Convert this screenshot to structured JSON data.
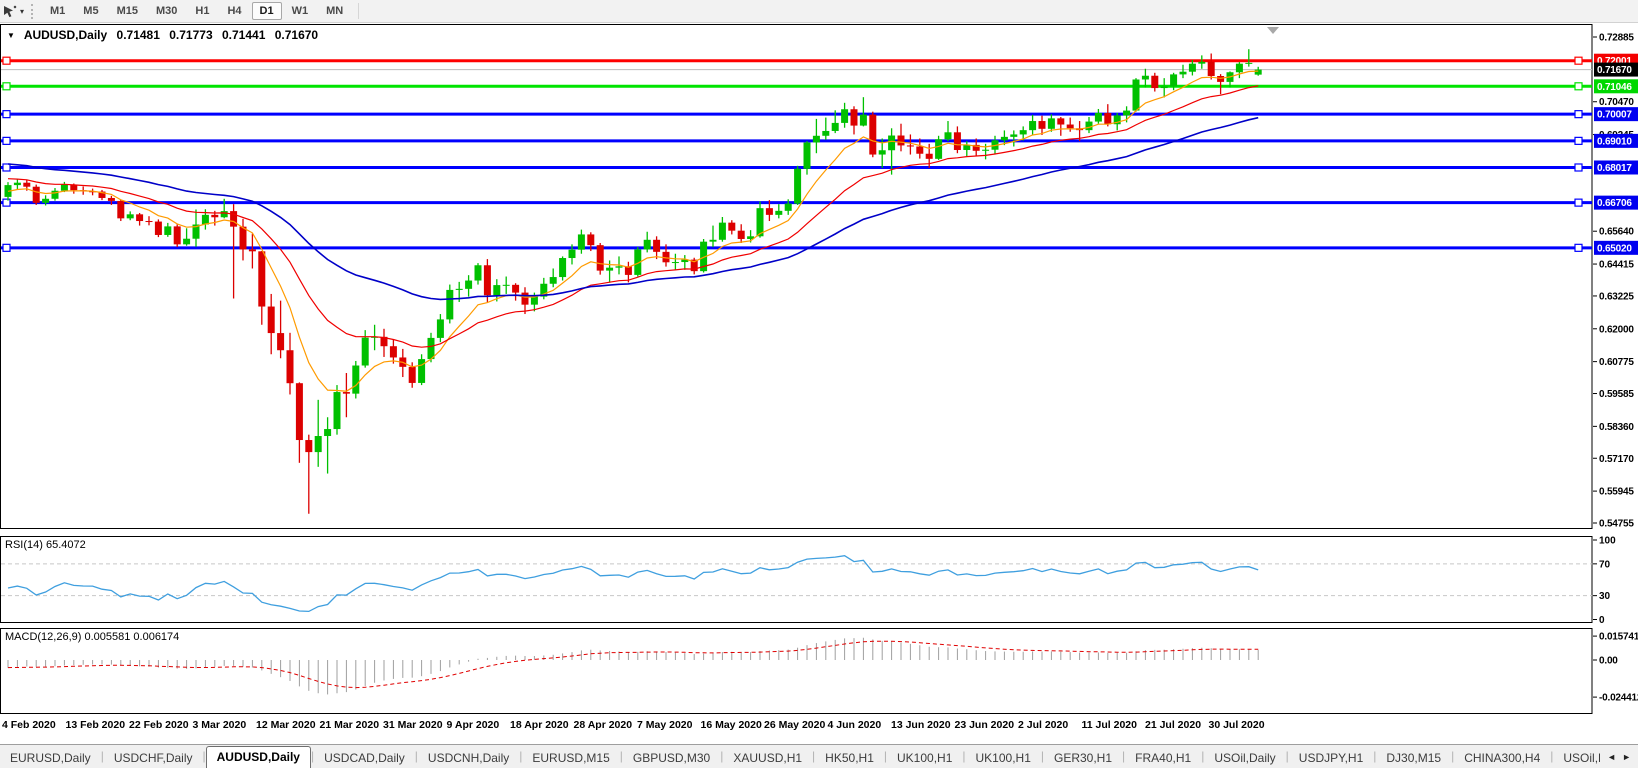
{
  "toolbar": {
    "timeframes": [
      "M1",
      "M5",
      "M15",
      "M30",
      "H1",
      "H4",
      "D1",
      "W1",
      "MN"
    ],
    "active": "D1"
  },
  "chart": {
    "title": {
      "symbol": "AUDUSD,Daily",
      "open": "0.71481",
      "high": "0.71773",
      "low": "0.71441",
      "close": "0.71670"
    }
  },
  "panels": {
    "rsi_label": "RSI(14) 65.4072",
    "macd_label": "MACD(12,26,9) 0.005581 0.006174"
  },
  "tabs": {
    "active_index": 2,
    "items": [
      "EURUSD,Daily",
      "USDCHF,Daily",
      "AUDUSD,Daily",
      "USDCAD,Daily",
      "USDCNH,Daily",
      "EURUSD,M15",
      "GBPUSD,M30",
      "XAUUSD,H1",
      "HK50,H1",
      "UK100,H1",
      "UK100,H1",
      "GER30,H1",
      "FRA40,H1",
      "USOil,Daily",
      "USDJPY,H1",
      "DJ30,M15",
      "CHINA300,H4",
      "USOil,H4"
    ],
    "left_arrow": "◄",
    "right_arrow": "►"
  },
  "chart_data": {
    "type": "candlestick",
    "symbol": "AUDUSD",
    "timeframe": "Daily",
    "current_bar": {
      "open": 0.71481,
      "high": 0.71773,
      "low": 0.71441,
      "close": 0.7167
    },
    "x_labels": [
      "4 Feb 2020",
      "13 Feb 2020",
      "22 Feb 2020",
      "3 Mar 2020",
      "12 Mar 2020",
      "21 Mar 2020",
      "31 Mar 2020",
      "9 Apr 2020",
      "18 Apr 2020",
      "28 Apr 2020",
      "7 May 2020",
      "16 May 2020",
      "26 May 2020",
      "4 Jun 2020",
      "13 Jun 2020",
      "23 Jun 2020",
      "2 Jul 2020",
      "11 Jul 2020",
      "21 Jul 2020",
      "30 Jul 2020"
    ],
    "price_axis_ticks": [
      0.72885,
      0.7047,
      0.69245,
      0.6564,
      0.64415,
      0.63225,
      0.62,
      0.60775,
      0.59585,
      0.5836,
      0.5717,
      0.55945,
      0.54755
    ],
    "axis_badges": [
      {
        "label": "0.72001",
        "bg": "#f40000",
        "fg": "#ffffff"
      },
      {
        "label": "0.71670",
        "bg": "#000000",
        "fg": "#ffffff"
      },
      {
        "label": "0.71046",
        "bg": "#00d800",
        "fg": "#ffffff"
      },
      {
        "label": "0.70007",
        "bg": "#0000f0",
        "fg": "#ffffff"
      },
      {
        "label": "0.69010",
        "bg": "#0000f0",
        "fg": "#ffffff"
      },
      {
        "label": "0.68017",
        "bg": "#0000f0",
        "fg": "#ffffff"
      },
      {
        "label": "0.66706",
        "bg": "#0000f0",
        "fg": "#ffffff"
      },
      {
        "label": "0.65020",
        "bg": "#0000f0",
        "fg": "#ffffff"
      }
    ],
    "hlines": [
      {
        "price": 0.72001,
        "color": "#ff0000",
        "width": 3
      },
      {
        "price": 0.71046,
        "color": "#00e400",
        "width": 3
      },
      {
        "price": 0.70007,
        "color": "#0000ff",
        "width": 3
      },
      {
        "price": 0.6901,
        "color": "#0000ff",
        "width": 3
      },
      {
        "price": 0.68017,
        "color": "#0000ff",
        "width": 3
      },
      {
        "price": 0.66706,
        "color": "#0000ff",
        "width": 3
      },
      {
        "price": 0.6502,
        "color": "#0000ff",
        "width": 3
      }
    ],
    "current_price_line": {
      "price": 0.7167,
      "color": "#bcbcbc",
      "width": 1
    },
    "colors": {
      "up": "#00c000",
      "down": "#dc0000",
      "rsi": "#3f9fdf",
      "macd_hist": "#9f9f9f",
      "macd_signal": "#e00000",
      "level_dash": "#c8c8c8"
    },
    "moving_averages": [
      {
        "type": "ema",
        "period": 8,
        "color": "#ff9b00",
        "width": 1.2
      },
      {
        "type": "ema",
        "period": 20,
        "color": "#f00000",
        "width": 1.2
      },
      {
        "type": "ema",
        "period": 45,
        "color": "#0000c8",
        "width": 1.6
      }
    ],
    "rsi": {
      "period": 14,
      "current": "65.4072",
      "levels": [
        70,
        30
      ],
      "axis": [
        {
          "v": 100,
          "label": "100"
        },
        {
          "v": 70,
          "label": "70"
        },
        {
          "v": 30,
          "label": "30"
        },
        {
          "v": 0,
          "label": "0"
        }
      ]
    },
    "macd": {
      "fast": 12,
      "slow": 26,
      "signal": 9,
      "current_main": "0.005581",
      "current_signal": "0.006174",
      "axis": [
        {
          "v": 0.015741,
          "label": "0.015741"
        },
        {
          "v": 0,
          "label": "0.00"
        },
        {
          "v": -0.024412,
          "label": "-0.024412"
        }
      ],
      "max": 0.015741,
      "min": -0.024412
    },
    "pre_closes": [
      0.6895,
      0.688,
      0.6862,
      0.685,
      0.6845,
      0.6858,
      0.684,
      0.6825,
      0.681,
      0.6805,
      0.6812,
      0.68,
      0.6798,
      0.682,
      0.6838,
      0.6845,
      0.6832,
      0.6828,
      0.6843,
      0.6855,
      0.684,
      0.6852,
      0.687,
      0.688,
      0.6875,
      0.689,
      0.6905,
      0.692,
      0.6938,
      0.6955,
      0.6985,
      0.7,
      0.7023,
      0.7015,
      0.6995,
      0.7,
      0.6985,
      0.695,
      0.6925,
      0.69,
      0.6882,
      0.687,
      0.6855,
      0.687,
      0.6885,
      0.6868,
      0.684,
      0.6805,
      0.6775,
      0.6762,
      0.6745,
      0.673,
      0.6718,
      0.67,
      0.6695,
      0.671,
      0.669,
      0.668,
      0.6692,
      0.669
    ],
    "candles": [
      [
        0.6692,
        0.6747,
        0.6678,
        0.6736
      ],
      [
        0.6736,
        0.676,
        0.672,
        0.6745
      ],
      [
        0.6745,
        0.6755,
        0.6715,
        0.673
      ],
      [
        0.673,
        0.6738,
        0.6662,
        0.667
      ],
      [
        0.667,
        0.6698,
        0.666,
        0.6685
      ],
      [
        0.6685,
        0.6725,
        0.6678,
        0.6715
      ],
      [
        0.6715,
        0.6748,
        0.671,
        0.6738
      ],
      [
        0.6738,
        0.6742,
        0.6704,
        0.6717
      ],
      [
        0.6717,
        0.6731,
        0.67,
        0.6713
      ],
      [
        0.6713,
        0.6723,
        0.6698,
        0.6712
      ],
      [
        0.6712,
        0.6718,
        0.668,
        0.6688
      ],
      [
        0.6688,
        0.6696,
        0.6662,
        0.6677
      ],
      [
        0.6677,
        0.6682,
        0.6602,
        0.6612
      ],
      [
        0.6612,
        0.6638,
        0.6605,
        0.6627
      ],
      [
        0.6627,
        0.6632,
        0.6585,
        0.6602
      ],
      [
        0.6602,
        0.662,
        0.6586,
        0.66
      ],
      [
        0.66,
        0.6608,
        0.6542,
        0.655
      ],
      [
        0.655,
        0.6595,
        0.6543,
        0.6582
      ],
      [
        0.6582,
        0.659,
        0.6505,
        0.6515
      ],
      [
        0.6515,
        0.6575,
        0.651,
        0.6536
      ],
      [
        0.6536,
        0.6645,
        0.6506,
        0.6589
      ],
      [
        0.6589,
        0.6646,
        0.657,
        0.6625
      ],
      [
        0.6625,
        0.664,
        0.6585,
        0.6616
      ],
      [
        0.6616,
        0.6685,
        0.6612,
        0.6639
      ],
      [
        0.6639,
        0.6665,
        0.6313,
        0.6581
      ],
      [
        0.6581,
        0.661,
        0.6455,
        0.6496
      ],
      [
        0.6496,
        0.6555,
        0.6425,
        0.6489
      ],
      [
        0.6489,
        0.649,
        0.6215,
        0.6283
      ],
      [
        0.6283,
        0.633,
        0.6105,
        0.6184
      ],
      [
        0.6184,
        0.6305,
        0.609,
        0.612
      ],
      [
        0.612,
        0.6185,
        0.5955,
        0.5997
      ],
      [
        0.5997,
        0.6,
        0.57,
        0.5785
      ],
      [
        0.5785,
        0.5805,
        0.551,
        0.574
      ],
      [
        0.574,
        0.5935,
        0.5685,
        0.58
      ],
      [
        0.58,
        0.587,
        0.566,
        0.5826
      ],
      [
        0.5826,
        0.599,
        0.5805,
        0.5964
      ],
      [
        0.5964,
        0.6035,
        0.587,
        0.5958
      ],
      [
        0.5958,
        0.608,
        0.594,
        0.6063
      ],
      [
        0.6063,
        0.6195,
        0.6055,
        0.6167
      ],
      [
        0.6167,
        0.6215,
        0.612,
        0.617
      ],
      [
        0.617,
        0.62,
        0.6095,
        0.6135
      ],
      [
        0.6135,
        0.616,
        0.607,
        0.6093
      ],
      [
        0.6093,
        0.6125,
        0.602,
        0.6058
      ],
      [
        0.6058,
        0.6075,
        0.598,
        0.5998
      ],
      [
        0.5998,
        0.6105,
        0.599,
        0.6087
      ],
      [
        0.6087,
        0.6185,
        0.6075,
        0.6166
      ],
      [
        0.6166,
        0.6255,
        0.615,
        0.6235
      ],
      [
        0.6235,
        0.6365,
        0.622,
        0.6345
      ],
      [
        0.6345,
        0.6375,
        0.63,
        0.6349
      ],
      [
        0.6349,
        0.64,
        0.632,
        0.638
      ],
      [
        0.638,
        0.6445,
        0.6365,
        0.6437
      ],
      [
        0.6437,
        0.646,
        0.63,
        0.6325
      ],
      [
        0.6325,
        0.6385,
        0.6302,
        0.6363
      ],
      [
        0.6363,
        0.6395,
        0.633,
        0.6364
      ],
      [
        0.6364,
        0.637,
        0.6305,
        0.6335
      ],
      [
        0.6335,
        0.6355,
        0.6255,
        0.629
      ],
      [
        0.629,
        0.6335,
        0.6265,
        0.632
      ],
      [
        0.632,
        0.639,
        0.631,
        0.6368
      ],
      [
        0.6368,
        0.6425,
        0.6355,
        0.6393
      ],
      [
        0.6393,
        0.647,
        0.638,
        0.6464
      ],
      [
        0.6464,
        0.6515,
        0.644,
        0.6495
      ],
      [
        0.6495,
        0.657,
        0.648,
        0.6552
      ],
      [
        0.6552,
        0.656,
        0.649,
        0.6512
      ],
      [
        0.6512,
        0.652,
        0.6402,
        0.6417
      ],
      [
        0.6417,
        0.6455,
        0.6372,
        0.6428
      ],
      [
        0.6428,
        0.647,
        0.6403,
        0.6433
      ],
      [
        0.6433,
        0.645,
        0.6373,
        0.6401
      ],
      [
        0.6401,
        0.6505,
        0.6395,
        0.6496
      ],
      [
        0.6496,
        0.6562,
        0.6485,
        0.6532
      ],
      [
        0.6532,
        0.6545,
        0.646,
        0.6487
      ],
      [
        0.6487,
        0.6515,
        0.6432,
        0.6448
      ],
      [
        0.6448,
        0.648,
        0.642,
        0.6449
      ],
      [
        0.6449,
        0.6475,
        0.642,
        0.6458
      ],
      [
        0.6458,
        0.6465,
        0.6403,
        0.6415
      ],
      [
        0.6415,
        0.6535,
        0.641,
        0.6525
      ],
      [
        0.6525,
        0.6585,
        0.6505,
        0.6532
      ],
      [
        0.6532,
        0.6617,
        0.6525,
        0.6596
      ],
      [
        0.6596,
        0.6605,
        0.6552,
        0.6566
      ],
      [
        0.6566,
        0.659,
        0.652,
        0.6535
      ],
      [
        0.6535,
        0.6568,
        0.6522,
        0.6545
      ],
      [
        0.6545,
        0.6675,
        0.654,
        0.665
      ],
      [
        0.665,
        0.668,
        0.6602,
        0.6625
      ],
      [
        0.6625,
        0.6665,
        0.6612,
        0.664
      ],
      [
        0.664,
        0.6683,
        0.6625,
        0.6667
      ],
      [
        0.6667,
        0.6808,
        0.6662,
        0.6797
      ],
      [
        0.6797,
        0.69,
        0.6775,
        0.6895
      ],
      [
        0.6895,
        0.6983,
        0.6855,
        0.692
      ],
      [
        0.692,
        0.6988,
        0.6905,
        0.6938
      ],
      [
        0.6938,
        0.7015,
        0.693,
        0.6968
      ],
      [
        0.6968,
        0.7043,
        0.695,
        0.7019
      ],
      [
        0.7019,
        0.703,
        0.6925,
        0.6958
      ],
      [
        0.6958,
        0.7064,
        0.6955,
        0.6999
      ],
      [
        0.6999,
        0.701,
        0.684,
        0.685
      ],
      [
        0.685,
        0.691,
        0.68,
        0.6866
      ],
      [
        0.6866,
        0.6948,
        0.6775,
        0.6921
      ],
      [
        0.6921,
        0.6965,
        0.6862,
        0.6884
      ],
      [
        0.6884,
        0.6925,
        0.685,
        0.688
      ],
      [
        0.688,
        0.691,
        0.6835,
        0.6853
      ],
      [
        0.6853,
        0.689,
        0.68,
        0.6834
      ],
      [
        0.6834,
        0.692,
        0.683,
        0.6907
      ],
      [
        0.6907,
        0.6975,
        0.69,
        0.6933
      ],
      [
        0.6933,
        0.6955,
        0.6855,
        0.6867
      ],
      [
        0.6867,
        0.69,
        0.6842,
        0.6886
      ],
      [
        0.6886,
        0.691,
        0.6845,
        0.6864
      ],
      [
        0.6864,
        0.689,
        0.6832,
        0.6868
      ],
      [
        0.6868,
        0.692,
        0.685,
        0.6903
      ],
      [
        0.6903,
        0.694,
        0.6885,
        0.6916
      ],
      [
        0.6916,
        0.694,
        0.688,
        0.6925
      ],
      [
        0.6925,
        0.6955,
        0.6902,
        0.6941
      ],
      [
        0.6941,
        0.6998,
        0.6922,
        0.6975
      ],
      [
        0.6975,
        0.6995,
        0.6923,
        0.6946
      ],
      [
        0.6946,
        0.7,
        0.6935,
        0.6985
      ],
      [
        0.6985,
        0.699,
        0.692,
        0.6962
      ],
      [
        0.6962,
        0.6988,
        0.6935,
        0.6948
      ],
      [
        0.6948,
        0.6975,
        0.69,
        0.6941
      ],
      [
        0.6941,
        0.699,
        0.693,
        0.6973
      ],
      [
        0.6973,
        0.702,
        0.6965,
        0.7005
      ],
      [
        0.7005,
        0.7038,
        0.6955,
        0.6963
      ],
      [
        0.6963,
        0.7005,
        0.694,
        0.6996
      ],
      [
        0.6996,
        0.703,
        0.697,
        0.7014
      ],
      [
        0.7014,
        0.7135,
        0.701,
        0.713
      ],
      [
        0.713,
        0.717,
        0.71,
        0.7144
      ],
      [
        0.7144,
        0.7155,
        0.7085,
        0.7098
      ],
      [
        0.7098,
        0.7135,
        0.7063,
        0.7104
      ],
      [
        0.7104,
        0.7155,
        0.709,
        0.7149
      ],
      [
        0.7149,
        0.7185,
        0.7135,
        0.7159
      ],
      [
        0.7159,
        0.7203,
        0.7145,
        0.7189
      ],
      [
        0.7189,
        0.722,
        0.717,
        0.7196
      ],
      [
        0.7196,
        0.7227,
        0.713,
        0.7143
      ],
      [
        0.7143,
        0.715,
        0.7075,
        0.7121
      ],
      [
        0.7121,
        0.716,
        0.71,
        0.7157
      ],
      [
        0.7157,
        0.7195,
        0.7135,
        0.7189
      ],
      [
        0.7189,
        0.7243,
        0.7178,
        0.7192
      ],
      [
        0.71481,
        0.71773,
        0.71441,
        0.7167
      ]
    ]
  }
}
